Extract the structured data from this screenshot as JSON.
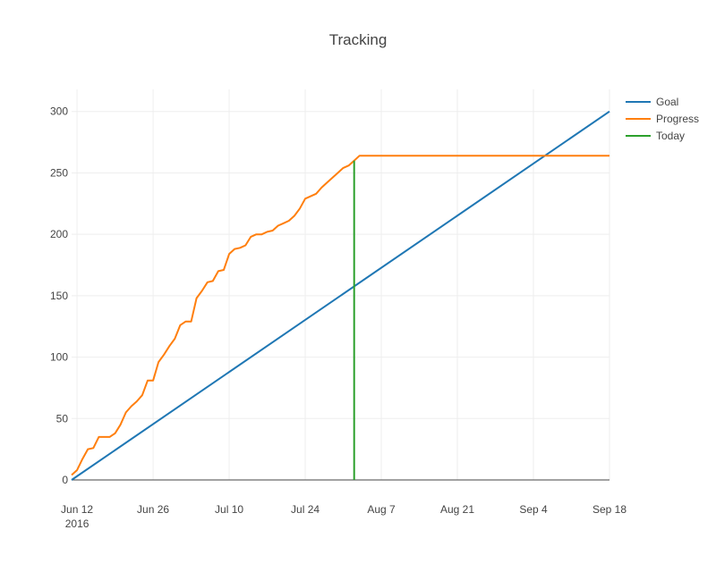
{
  "chart_data": {
    "type": "line",
    "title": "Tracking",
    "xlabel": "",
    "ylabel": "",
    "x_axis": {
      "type": "date",
      "range": [
        "2016-06-11",
        "2016-09-18"
      ],
      "ticks": [
        {
          "date": "2016-06-12",
          "label": "Jun 12",
          "sublabel": "2016"
        },
        {
          "date": "2016-06-26",
          "label": "Jun 26",
          "sublabel": ""
        },
        {
          "date": "2016-07-10",
          "label": "Jul 10",
          "sublabel": ""
        },
        {
          "date": "2016-07-24",
          "label": "Jul 24",
          "sublabel": ""
        },
        {
          "date": "2016-08-07",
          "label": "Aug 7",
          "sublabel": ""
        },
        {
          "date": "2016-08-21",
          "label": "Aug 21",
          "sublabel": ""
        },
        {
          "date": "2016-09-04",
          "label": "Sep 4",
          "sublabel": ""
        },
        {
          "date": "2016-09-18",
          "label": "Sep 18",
          "sublabel": ""
        }
      ]
    },
    "y_axis": {
      "range": [
        0,
        318
      ],
      "ticks": [
        0,
        50,
        100,
        150,
        200,
        250,
        300
      ]
    },
    "grid": true,
    "legend_position": "top-right",
    "series": [
      {
        "name": "Goal",
        "color": "#1f77b4",
        "x": [
          "2016-06-11",
          "2016-09-18"
        ],
        "y": [
          0,
          300
        ]
      },
      {
        "name": "Progress",
        "color": "#ff7f0e",
        "x": [
          "2016-06-11",
          "2016-06-12",
          "2016-06-13",
          "2016-06-14",
          "2016-06-15",
          "2016-06-16",
          "2016-06-17",
          "2016-06-18",
          "2016-06-19",
          "2016-06-20",
          "2016-06-21",
          "2016-06-22",
          "2016-06-23",
          "2016-06-24",
          "2016-06-25",
          "2016-06-26",
          "2016-06-27",
          "2016-06-28",
          "2016-06-29",
          "2016-06-30",
          "2016-07-01",
          "2016-07-02",
          "2016-07-03",
          "2016-07-04",
          "2016-07-05",
          "2016-07-06",
          "2016-07-07",
          "2016-07-08",
          "2016-07-09",
          "2016-07-10",
          "2016-07-11",
          "2016-07-12",
          "2016-07-13",
          "2016-07-14",
          "2016-07-15",
          "2016-07-16",
          "2016-07-17",
          "2016-07-18",
          "2016-07-19",
          "2016-07-20",
          "2016-07-21",
          "2016-07-22",
          "2016-07-23",
          "2016-07-24",
          "2016-07-25",
          "2016-07-26",
          "2016-07-27",
          "2016-07-28",
          "2016-07-29",
          "2016-07-30",
          "2016-07-31",
          "2016-08-01",
          "2016-08-02",
          "2016-08-03",
          "2016-09-18"
        ],
        "y": [
          4,
          8,
          17,
          25,
          26,
          35,
          35,
          35,
          38,
          45,
          55,
          60,
          64,
          69,
          81,
          81,
          96,
          102,
          109,
          115,
          126,
          129,
          129,
          148,
          154,
          161,
          162,
          170,
          171,
          184,
          188,
          189,
          191,
          198,
          200,
          200,
          202,
          203,
          207,
          209,
          211,
          215,
          221,
          229,
          231,
          233,
          238,
          242,
          246,
          250,
          254,
          256,
          260,
          264,
          264
        ]
      },
      {
        "name": "Today",
        "color": "#2ca02c",
        "x": [
          "2016-08-02",
          "2016-08-02"
        ],
        "y": [
          0,
          260
        ]
      }
    ]
  }
}
